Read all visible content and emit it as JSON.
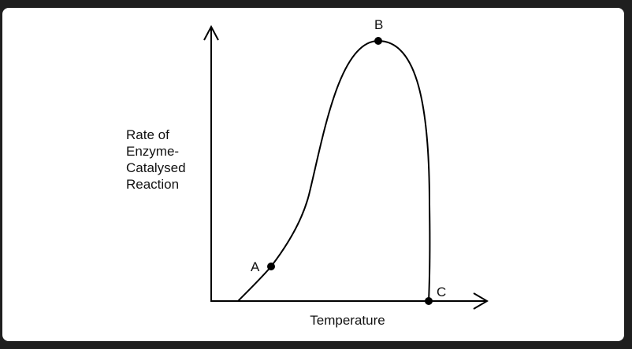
{
  "diagram": {
    "y_axis_label": [
      "Rate of",
      "Enzyme-",
      "Catalysed",
      "Reaction"
    ],
    "x_axis_label": "Temperature",
    "points": [
      {
        "label": "A"
      },
      {
        "label": "B"
      },
      {
        "label": "C"
      }
    ]
  }
}
